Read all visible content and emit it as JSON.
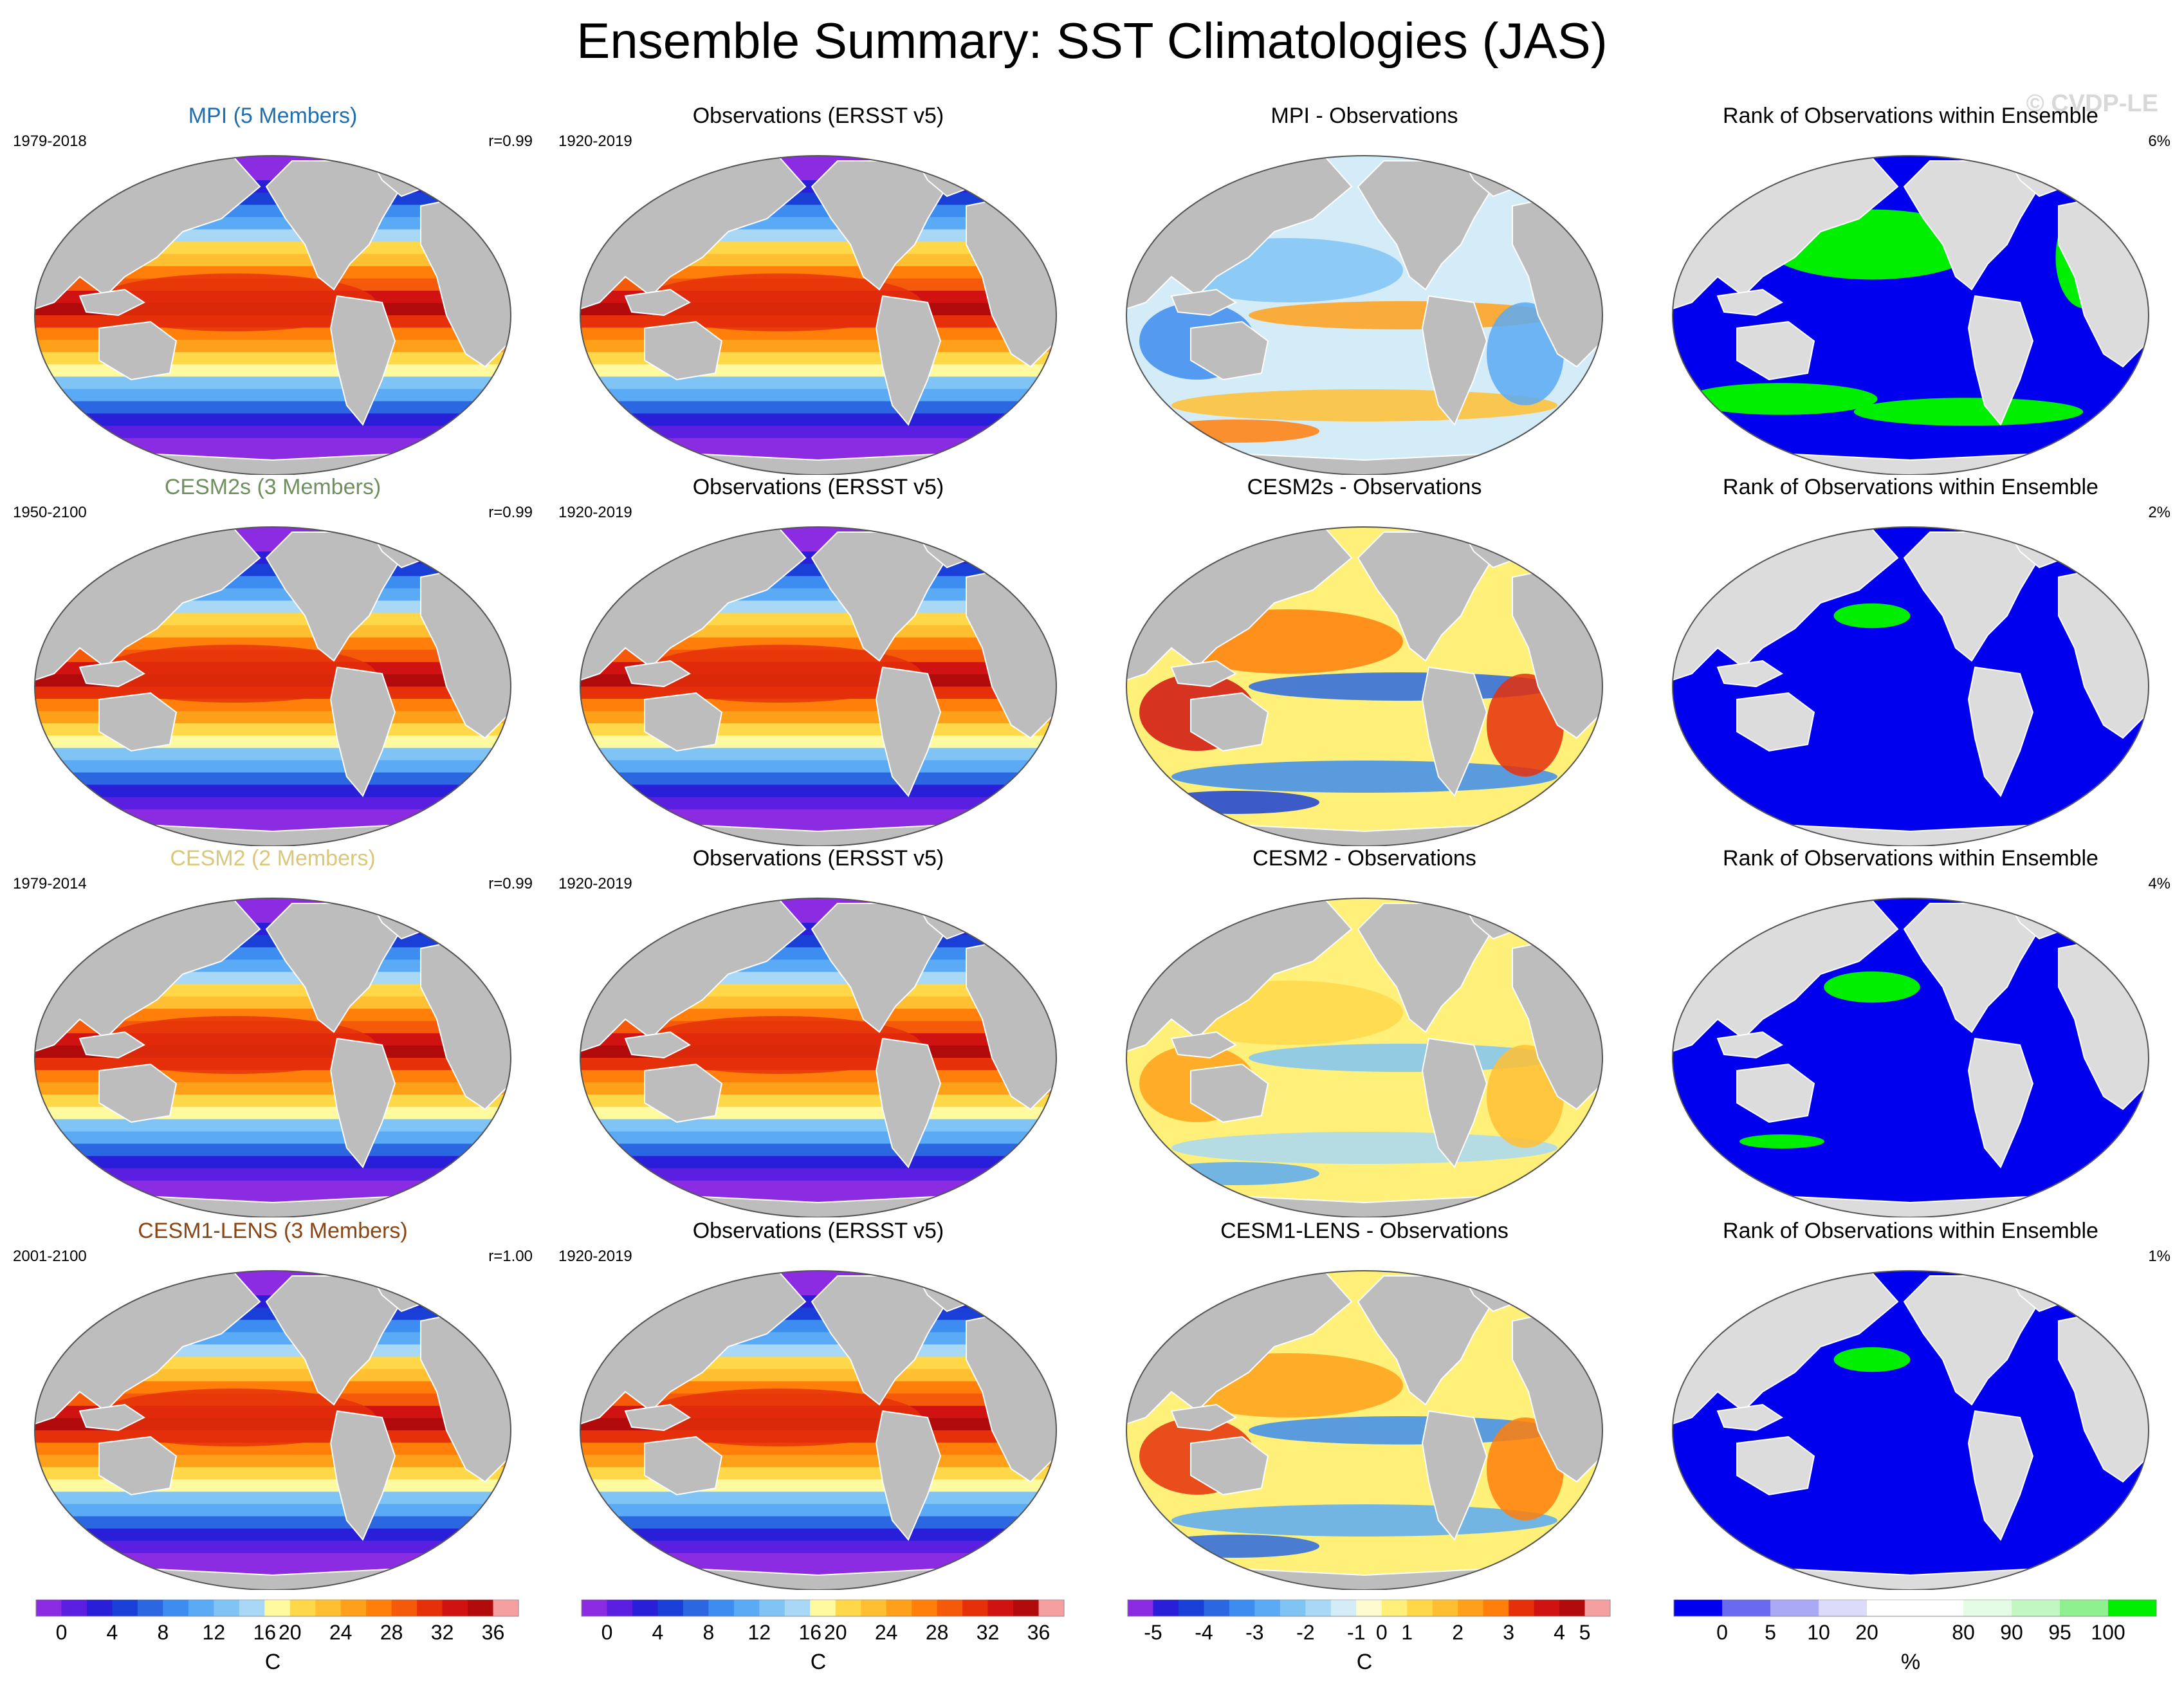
{
  "title": "Ensemble Summary: SST Climatologies (JAS)",
  "watermark": "© CVDP-LE",
  "colors": {
    "land_model": "#bdbdbd",
    "land_rank": "#dcdcdc",
    "rank_low": "#0000ee",
    "rank_high": "#00ee00"
  },
  "rows": [
    {
      "panels": [
        {
          "kind": "clim",
          "title": "MPI (5 Members)",
          "title_color": "#1f6fb0",
          "left": "1979-2018",
          "right": "r=0.99"
        },
        {
          "kind": "clim",
          "title": "Observations (ERSST v5)",
          "title_color": "#000000",
          "left": "1920-2019",
          "right": ""
        },
        {
          "kind": "diff",
          "title": "MPI - Observations",
          "title_color": "#000000",
          "left": "",
          "right": "",
          "bias": -0.6
        },
        {
          "kind": "rank",
          "title": "Rank of Observations within Ensemble",
          "title_color": "#000000",
          "left": "",
          "right": "6%",
          "green_fraction": 0.45
        }
      ]
    },
    {
      "panels": [
        {
          "kind": "clim",
          "title": "CESM2s (3 Members)",
          "title_color": "#6f8f5f",
          "left": "1950-2100",
          "right": "r=0.99"
        },
        {
          "kind": "clim",
          "title": "Observations (ERSST v5)",
          "title_color": "#000000",
          "left": "1920-2019",
          "right": ""
        },
        {
          "kind": "diff",
          "title": "CESM2s - Observations",
          "title_color": "#000000",
          "left": "",
          "right": "",
          "bias": 1.2
        },
        {
          "kind": "rank",
          "title": "Rank of Observations within Ensemble",
          "title_color": "#000000",
          "left": "",
          "right": "2%",
          "green_fraction": 0.12
        }
      ]
    },
    {
      "panels": [
        {
          "kind": "clim",
          "title": "CESM2 (2 Members)",
          "title_color": "#d9c77a",
          "left": "1979-2014",
          "right": "r=0.99"
        },
        {
          "kind": "clim",
          "title": "Observations (ERSST v5)",
          "title_color": "#000000",
          "left": "1920-2019",
          "right": ""
        },
        {
          "kind": "diff",
          "title": "CESM2 - Observations",
          "title_color": "#000000",
          "left": "",
          "right": "",
          "bias": 0.3
        },
        {
          "kind": "rank",
          "title": "Rank of Observations within Ensemble",
          "title_color": "#000000",
          "left": "",
          "right": "4%",
          "green_fraction": 0.2
        }
      ]
    },
    {
      "panels": [
        {
          "kind": "clim",
          "title": "CESM1-LENS (3 Members)",
          "title_color": "#8b4513",
          "left": "2001-2100",
          "right": "r=1.00"
        },
        {
          "kind": "clim",
          "title": "Observations (ERSST v5)",
          "title_color": "#000000",
          "left": "1920-2019",
          "right": ""
        },
        {
          "kind": "diff",
          "title": "CESM1-LENS - Observations",
          "title_color": "#000000",
          "left": "",
          "right": "",
          "bias": 1.0
        },
        {
          "kind": "rank",
          "title": "Rank of Observations within Ensemble",
          "title_color": "#000000",
          "left": "",
          "right": "1%",
          "green_fraction": 0.1
        }
      ]
    }
  ],
  "colorbars": [
    {
      "unit": "C",
      "colors": [
        "#8b2be2",
        "#5a1fe0",
        "#2a1fd8",
        "#1a3fd6",
        "#2a67e0",
        "#3d8cf0",
        "#5aaaf5",
        "#80c4f5",
        "#a8d8f5",
        "#fffaa0",
        "#ffd84a",
        "#ffbf33",
        "#ffa01a",
        "#ff7f0a",
        "#f55a0a",
        "#e5300a",
        "#d01212",
        "#b00a0a",
        "#f5a0a0"
      ],
      "labels": [
        "0",
        "4",
        "8",
        "12",
        "16",
        "20",
        "24",
        "28",
        "32",
        "36"
      ],
      "label_index": [
        1,
        3,
        5,
        7,
        9,
        10,
        12,
        14,
        16,
        18
      ]
    },
    {
      "unit": "C",
      "colors": [
        "#8b2be2",
        "#5a1fe0",
        "#2a1fd8",
        "#1a3fd6",
        "#2a67e0",
        "#3d8cf0",
        "#5aaaf5",
        "#80c4f5",
        "#a8d8f5",
        "#fffaa0",
        "#ffd84a",
        "#ffbf33",
        "#ffa01a",
        "#ff7f0a",
        "#f55a0a",
        "#e5300a",
        "#d01212",
        "#b00a0a",
        "#f5a0a0"
      ],
      "labels": [
        "0",
        "4",
        "8",
        "12",
        "16",
        "20",
        "24",
        "28",
        "32",
        "36"
      ],
      "label_index": [
        1,
        3,
        5,
        7,
        9,
        10,
        12,
        14,
        16,
        18
      ]
    },
    {
      "unit": "C",
      "colors": [
        "#8b2be2",
        "#2a1fd8",
        "#1a3fd6",
        "#2a67e0",
        "#3d8cf0",
        "#5aaaf5",
        "#80c4f5",
        "#a8d8f5",
        "#d4ecf8",
        "#fffbd0",
        "#fff07a",
        "#ffd84a",
        "#ffbf33",
        "#ffa01a",
        "#ff7f0a",
        "#e5300a",
        "#d01212",
        "#b00a0a",
        "#f5a0a0"
      ],
      "labels": [
        "-5",
        "-4",
        "-3",
        "-2",
        "-1",
        "0",
        "1",
        "2",
        "3",
        "4",
        "5"
      ],
      "label_index": [
        1,
        3,
        5,
        7,
        9,
        10,
        11,
        13,
        15,
        17,
        18
      ]
    },
    {
      "unit": "%",
      "colors": [
        "#0000ee",
        "#6a6af0",
        "#a9a9f5",
        "#dcdcfa",
        "#ffffff",
        "#ffffff",
        "#e4fbe4",
        "#c2f7c2",
        "#8ef08e",
        "#00ee00"
      ],
      "labels": [
        "0",
        "5",
        "10",
        "20",
        "80",
        "90",
        "95",
        "100"
      ],
      "label_index": [
        1,
        2,
        3,
        4,
        6,
        7,
        8,
        9
      ]
    }
  ]
}
